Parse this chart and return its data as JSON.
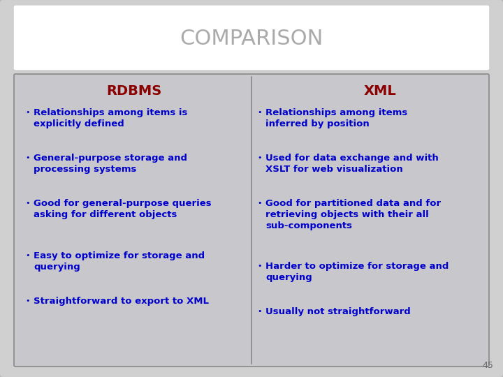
{
  "title": "COMPARISON",
  "title_color": "#aaaaaa",
  "title_fontsize": 22,
  "slide_bg": "#d0d0d0",
  "header_bg": "#ffffff",
  "panel_bg": "#c8c8cc",
  "col_header_color": "#8b0000",
  "col_header_fontsize": 14,
  "bullet_color": "#0000cc",
  "bullet_fontsize": 9.5,
  "bullet_dot_fontsize": 8,
  "left_header": "RDBMS",
  "right_header": "XML",
  "left_bullets": [
    "Relationships among items is\nexplicitly defined",
    "General-purpose storage and\nprocessing systems",
    "Good for general-purpose queries\nasking for different objects",
    "Easy to optimize for storage and\nquerying",
    "Straightforward to export to XML"
  ],
  "right_bullets": [
    "Relationships among items\ninferred by position",
    "Used for data exchange and with\nXSLT for web visualization",
    "Good for partitioned data and for\nretrieving objects with their all\nsub-components",
    "Harder to optimize for storage and\nquerying",
    "Usually not straightforward"
  ],
  "page_number": "45",
  "page_number_color": "#666666",
  "page_number_fontsize": 9,
  "outer_edge_color": "#bbbbbb",
  "panel_edge_color": "#888888",
  "divider_color": "#888888"
}
